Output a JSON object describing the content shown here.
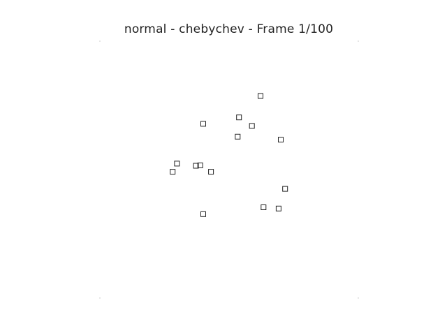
{
  "chart_data": {
    "type": "scatter",
    "title": "normal - chebychev - Frame 1/100",
    "xlabel": "",
    "ylabel": "",
    "axes_visible": false,
    "grid": false,
    "marker": "hollow-square",
    "marker_color": "#222222",
    "background": "#ffffff",
    "xlim": [
      -3,
      3
    ],
    "ylim": [
      -3,
      3
    ],
    "points": [
      {
        "x": 0.73,
        "y": 1.72
      },
      {
        "x": 0.23,
        "y": 1.22
      },
      {
        "x": 0.53,
        "y": 1.02
      },
      {
        "x": -0.6,
        "y": 1.07
      },
      {
        "x": 0.2,
        "y": 0.77
      },
      {
        "x": 1.2,
        "y": 0.7
      },
      {
        "x": -1.21,
        "y": 0.14
      },
      {
        "x": -0.77,
        "y": 0.09
      },
      {
        "x": -0.67,
        "y": 0.1
      },
      {
        "x": -1.31,
        "y": -0.05
      },
      {
        "x": -0.42,
        "y": -0.05
      },
      {
        "x": 1.3,
        "y": -0.45
      },
      {
        "x": 0.8,
        "y": -0.88
      },
      {
        "x": 1.15,
        "y": -0.91
      },
      {
        "x": -0.6,
        "y": -1.04
      }
    ]
  }
}
